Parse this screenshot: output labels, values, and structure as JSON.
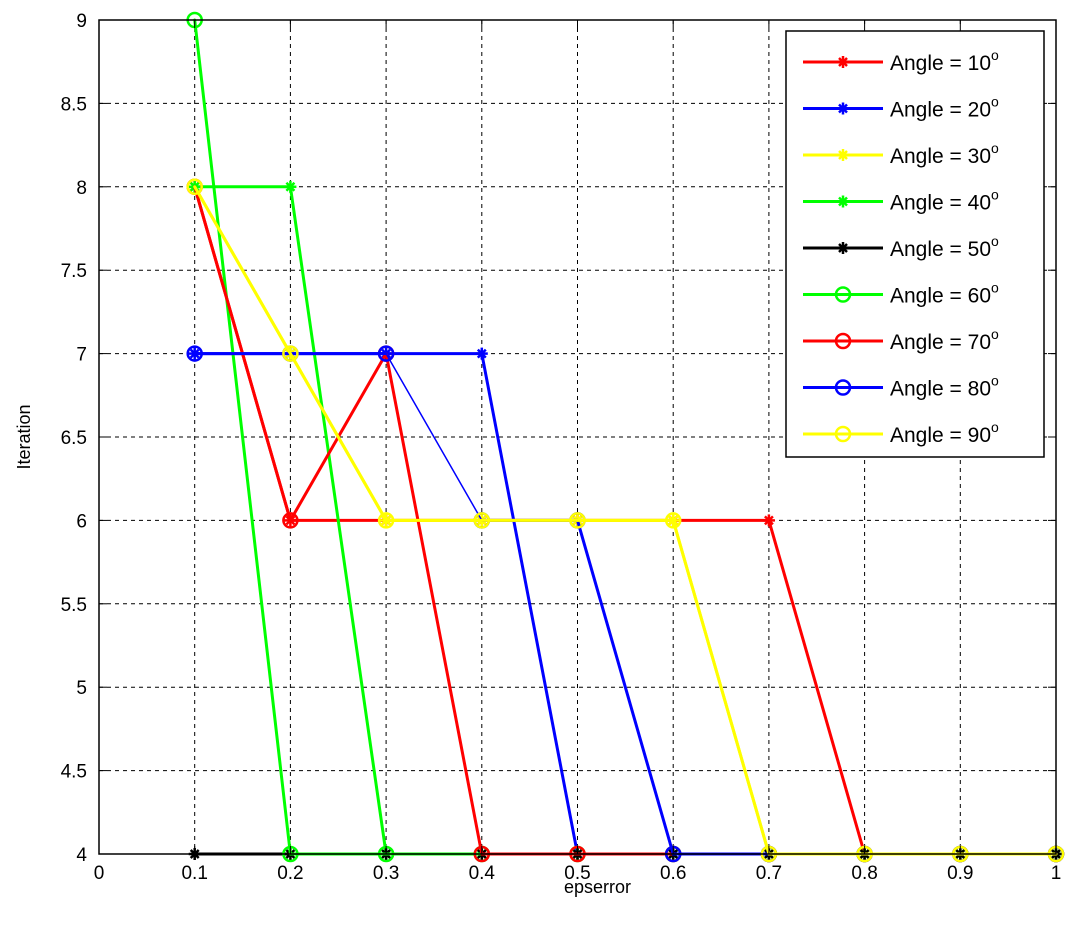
{
  "chart_data": {
    "type": "line",
    "xlabel": "epserror",
    "ylabel": "Iteration",
    "xlim": [
      0,
      1
    ],
    "ylim": [
      4,
      9
    ],
    "xticks": [
      0,
      0.1,
      0.2,
      0.3,
      0.4,
      0.5,
      0.6,
      0.7,
      0.8,
      0.9,
      1
    ],
    "xtick_labels": [
      "0",
      "0.1",
      "0.2",
      "0.3",
      "0.4",
      "0.5",
      "0.6",
      "0.7",
      "0.8",
      "0.9",
      "1"
    ],
    "yticks": [
      4,
      4.5,
      5,
      5.5,
      6,
      6.5,
      7,
      7.5,
      8,
      8.5,
      9
    ],
    "ytick_labels": [
      "4",
      "4.5",
      "5",
      "5.5",
      "6",
      "6.5",
      "7",
      "7.5",
      "8",
      "8.5",
      "9"
    ],
    "grid": true,
    "legend_position": "top-right",
    "x": [
      0.1,
      0.2,
      0.3,
      0.4,
      0.5,
      0.6,
      0.7,
      0.8,
      0.9,
      1.0
    ],
    "series": [
      {
        "name": "Angle = 10",
        "unit_sup": "o",
        "color": "#ff0000",
        "marker": "star",
        "line_width": 3,
        "values": [
          8,
          6,
          6,
          6,
          6,
          6,
          6,
          4,
          4,
          4
        ]
      },
      {
        "name": "Angle = 20",
        "unit_sup": "o",
        "color": "#0000ff",
        "marker": "star",
        "line_width": 3,
        "values": [
          7,
          7,
          7,
          7,
          4,
          4,
          4,
          4,
          4,
          4
        ]
      },
      {
        "name": "Angle = 30",
        "unit_sup": "o",
        "color": "#ffff00",
        "marker": "star",
        "line_width": 3,
        "values": [
          8,
          7,
          6,
          6,
          6,
          6,
          4,
          4,
          4,
          4
        ]
      },
      {
        "name": "Angle = 40",
        "unit_sup": "o",
        "color": "#00ff00",
        "marker": "star",
        "line_width": 3,
        "values": [
          8,
          8,
          4,
          4,
          4,
          4,
          4,
          4,
          4,
          4
        ]
      },
      {
        "name": "Angle = 50",
        "unit_sup": "o",
        "color": "#000000",
        "marker": "star",
        "line_width": 3,
        "values": [
          4,
          4,
          4,
          4,
          4,
          4,
          4,
          4,
          4,
          4
        ]
      },
      {
        "name": "Angle = 60",
        "unit_sup": "o",
        "color": "#00ff00",
        "marker": "circle",
        "line_width": 3,
        "values": [
          9,
          4,
          4,
          4,
          4,
          4,
          4,
          4,
          4,
          4
        ]
      },
      {
        "name": "Angle = 70",
        "unit_sup": "o",
        "color": "#ff0000",
        "marker": "circle",
        "line_width": 3,
        "values": [
          8,
          6,
          7,
          4,
          4,
          4,
          4,
          4,
          4,
          4
        ]
      },
      {
        "name": "Angle = 80",
        "unit_sup": "o",
        "color": "#0000ff",
        "marker": "circle",
        "line_width": 3,
        "values": [
          7,
          7,
          7,
          6,
          6,
          4,
          4,
          4,
          4,
          4
        ],
        "thin_segments": [
          2
        ]
      },
      {
        "name": "Angle = 90",
        "unit_sup": "o",
        "color": "#ffff00",
        "marker": "circle",
        "line_width": 3,
        "values": [
          8,
          7,
          6,
          6,
          6,
          6,
          4,
          4,
          4,
          4
        ]
      }
    ]
  }
}
